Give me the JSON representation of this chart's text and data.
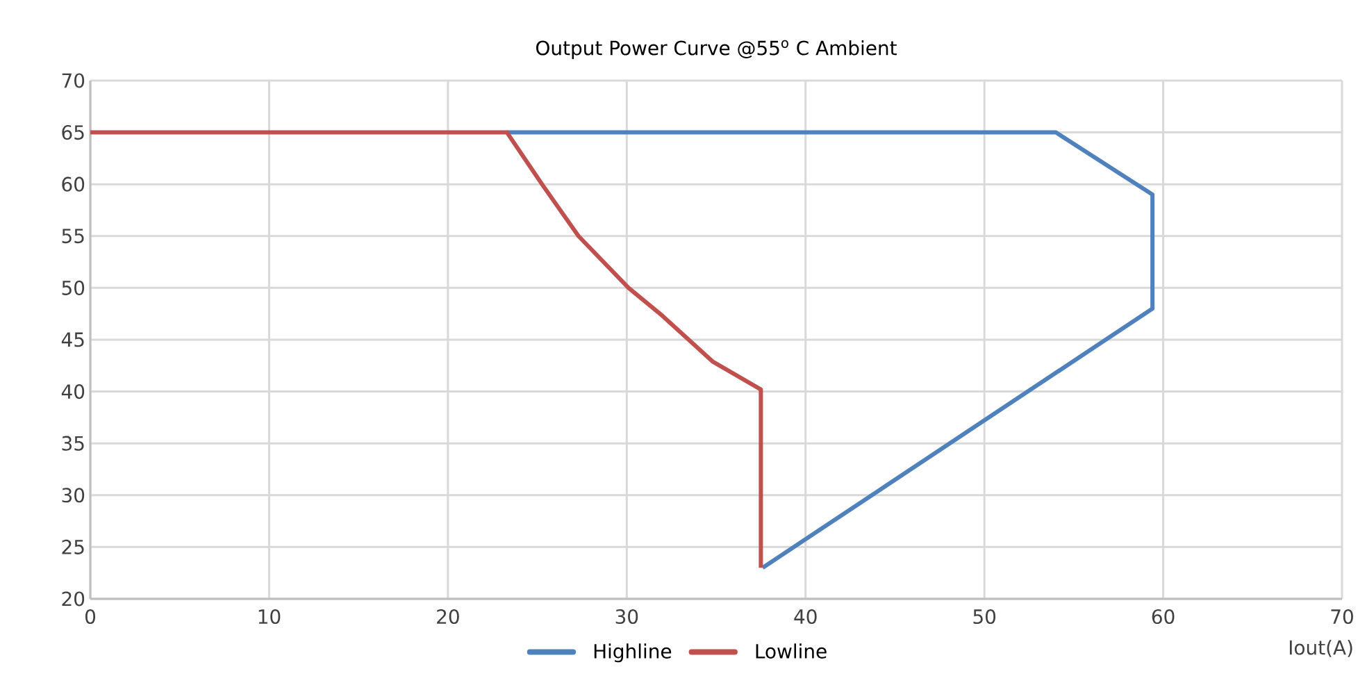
{
  "chart_data": {
    "type": "line",
    "title": "Output Power Curve @55$^{o}$ C Ambient",
    "xlabel": "Iout(A)",
    "series": [
      {
        "name": "Highline",
        "color": "#4f81bd",
        "x": [
          23.3,
          54.0,
          59.4,
          59.4,
          37.6
        ],
        "values": [
          65,
          65,
          59,
          48,
          23
        ]
      },
      {
        "name": "Lowline",
        "color": "#c0504d",
        "x": [
          0,
          23.3,
          25.3,
          27.3,
          30.1,
          32.0,
          34.8,
          37.5,
          37.5
        ],
        "values": [
          65,
          65,
          59.9,
          55.0,
          50.0,
          47.3,
          42.9,
          40.2,
          23
        ]
      }
    ],
    "xlim": [
      0,
      70
    ],
    "xticks": [
      0,
      10,
      20,
      30,
      40,
      50,
      60,
      70
    ],
    "ylim": [
      20,
      70
    ],
    "yticks": [
      20,
      25,
      30,
      35,
      40,
      45,
      50,
      55,
      60,
      65,
      70
    ],
    "grid": true,
    "legend": "bottom",
    "marker": "none",
    "line_style": "solid"
  }
}
